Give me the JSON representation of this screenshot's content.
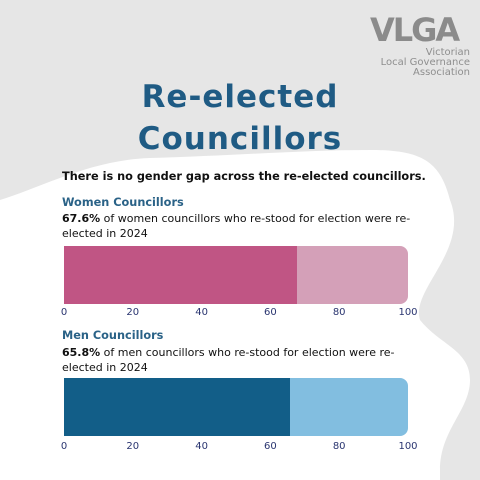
{
  "logo": {
    "mark": "VLGA",
    "lines": [
      "Victorian",
      "Local Governance",
      "Association"
    ]
  },
  "title_line1": "Re-elected",
  "title_line2": "Councillors",
  "subtitle": "There is no gender gap across the re-elected councillors.",
  "colors": {
    "title": "#1f5b84",
    "women_fill": "#c05584",
    "women_track": "#d4a0b8",
    "men_fill": "#125e88",
    "men_track": "#82bee0"
  },
  "chart_data": [
    {
      "type": "bar",
      "orientation": "horizontal",
      "title": "Women Councillors",
      "highlight": "67.6%",
      "description": " of women councillors who re-stood for election were re-elected in 2024",
      "value": 67.6,
      "xlim": [
        0,
        100
      ],
      "ticks": [
        "0",
        "20",
        "40",
        "60",
        "80",
        "100"
      ]
    },
    {
      "type": "bar",
      "orientation": "horizontal",
      "title": "Men Councillors",
      "highlight": "65.8%",
      "description": " of men councillors who re-stood for election were re-elected in 2024",
      "value": 65.8,
      "xlim": [
        0,
        100
      ],
      "ticks": [
        "0",
        "20",
        "40",
        "60",
        "80",
        "100"
      ]
    }
  ]
}
